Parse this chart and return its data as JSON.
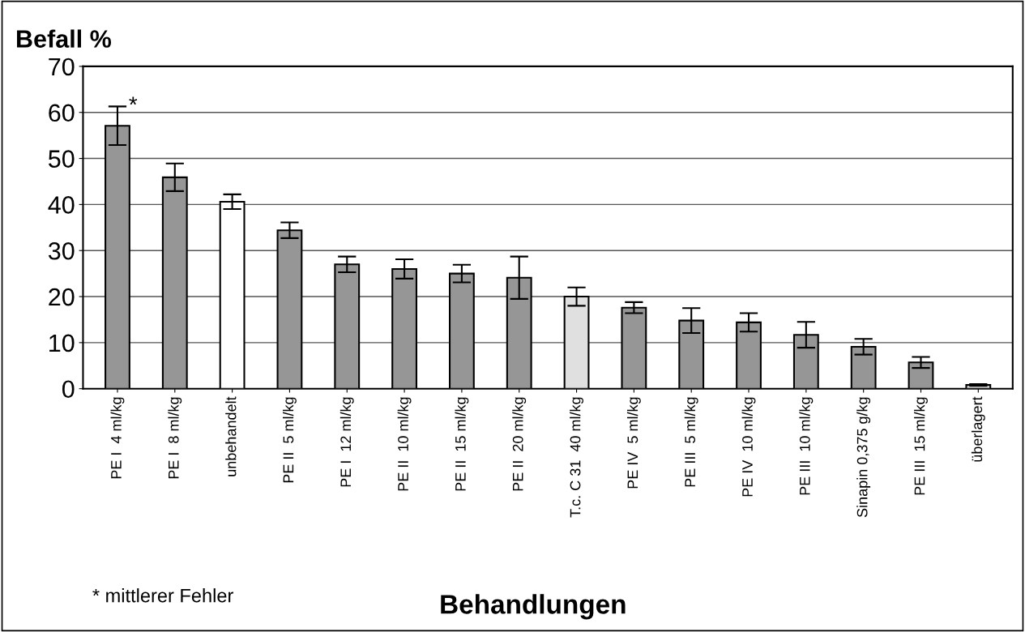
{
  "chart_data": {
    "type": "bar",
    "ylabel": "Befall %",
    "xlabel": "Behandlungen",
    "categories": [
      "PE I  4 ml/kg",
      "PE I  8 ml/kg",
      "unbehandelt",
      "PE II  5 ml/kg",
      "PE I  12 ml/kg",
      "PE II  10 ml/kg",
      "PE II  15 ml/kg",
      "PE II  20 ml/kg",
      "T.c. C 31  40 ml/kg",
      "PE IV  5 ml/kg",
      "PE III  5 ml/kg",
      "PE IV  10 ml/kg",
      "PE III  10 ml/kg",
      "Sinapin 0,375 g/kg",
      "PE III  15 ml/kg",
      "überlagert"
    ],
    "values": [
      57.1,
      45.9,
      40.6,
      34.4,
      27.0,
      26.0,
      25.0,
      24.1,
      20.0,
      17.6,
      14.8,
      14.4,
      11.7,
      9.1,
      5.7,
      0.8
    ],
    "errors": [
      4.2,
      3.0,
      1.6,
      1.7,
      1.7,
      2.1,
      1.9,
      4.6,
      2.0,
      1.2,
      2.7,
      2.0,
      2.8,
      1.7,
      1.2,
      0.2
    ],
    "colors": [
      "#969696",
      "#969696",
      "#ffffff",
      "#969696",
      "#969696",
      "#969696",
      "#969696",
      "#969696",
      "#e0e0e0",
      "#969696",
      "#969696",
      "#969696",
      "#969696",
      "#969696",
      "#969696",
      "#e0e0e0"
    ],
    "ylim": [
      0,
      70
    ],
    "yticks": [
      0,
      10,
      20,
      30,
      40,
      50,
      60,
      70
    ],
    "grid": "y",
    "legend": false,
    "annotations": [
      {
        "text": "*",
        "x": "PE I  4 ml/kg",
        "y": 61.3
      },
      "* mittlerer Fehler"
    ]
  }
}
